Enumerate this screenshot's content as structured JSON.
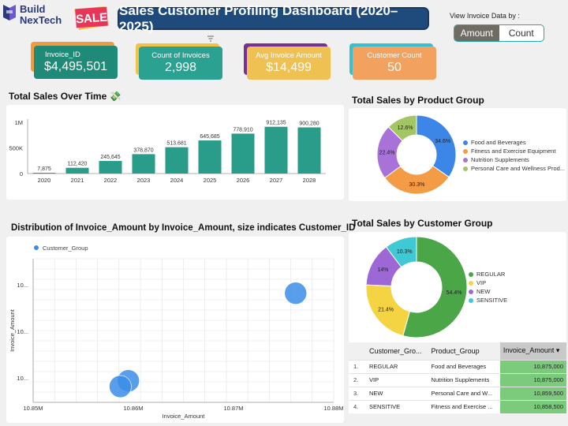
{
  "brand": {
    "line1": "Build",
    "line2": "NexTech"
  },
  "sale_badge": "SALE",
  "title": "Sales Customer Profiling Dashboard (2020–2025)",
  "view_toggle": {
    "label": "View Invoice Data by :",
    "options": [
      "Amount",
      "Count"
    ],
    "selected": "Amount"
  },
  "kpis": [
    {
      "label": "Invoice_ID",
      "value": "$4,495,501",
      "color": "#1f8a77",
      "back": "#f39a3c"
    },
    {
      "label": "Count of Invoices",
      "value": "2,998",
      "color": "#2aa191",
      "back": "#f1c244"
    },
    {
      "label": "Avg Invoice Amount",
      "value": "$14,499",
      "color": "#efc153",
      "back": "#7a2f92"
    },
    {
      "label": "Customer Count",
      "value": "50",
      "color": "#f2a25e",
      "back": "#36c0d0"
    }
  ],
  "sales_over_time": {
    "title": "Total Sales Over Time 💸",
    "chart_data": {
      "type": "bar",
      "categories": [
        "2020",
        "2021",
        "2022",
        "2023",
        "2024",
        "2025",
        "2026",
        "2027",
        "2028"
      ],
      "values": [
        7875,
        112420,
        245645,
        378870,
        513681,
        645685,
        778910,
        912135,
        900280
      ],
      "labels": [
        "7,875",
        "112,420",
        "245,645",
        "378,870",
        "513,681",
        "645,685",
        "778,910",
        "912,135",
        "900,280"
      ],
      "y_ticks": [
        "0",
        "500K",
        "1M"
      ],
      "ylim": [
        0,
        1000000
      ],
      "color": "#2a9d8a"
    }
  },
  "product_group": {
    "title": "Total Sales by Product Group",
    "chart_data": {
      "type": "pie",
      "labels": [
        "Food and Beverages",
        "Fitness and Exercise Equipment",
        "Nutrition Supplements",
        "Personal Care and Wellness Prod..."
      ],
      "values": [
        34.6,
        30.3,
        22.4,
        12.6
      ],
      "display": [
        "34.6%",
        "30.3%",
        "22.4%",
        "12.6%"
      ],
      "colors": [
        "#3c86e8",
        "#f39b45",
        "#a872d8",
        "#a4c564"
      ]
    }
  },
  "customer_group": {
    "title": "Total Sales by Customer Group",
    "chart_data": {
      "type": "pie",
      "labels": [
        "REGULAR",
        "VIP",
        "NEW",
        "SENSITIVE"
      ],
      "values": [
        54.4,
        21.4,
        14,
        10.3
      ],
      "display": [
        "54.4%",
        "21.4%",
        "14%",
        "10.3%"
      ],
      "colors": [
        "#4aa647",
        "#f5d443",
        "#9d68d6",
        "#3ec9d5"
      ]
    }
  },
  "distribution": {
    "title": "Distribution of Invoice_Amount by Invoice_Amount, size indicates Customer_ID",
    "chart_data": {
      "type": "scatter",
      "legend": "Customer_Group",
      "xlabel": "Invoice_Amount",
      "ylabel": "Invoice_Amount",
      "x_ticks": [
        "10.85M",
        "10.86M",
        "10.87M",
        "10.88M"
      ],
      "y_ticks": [
        "10...",
        "10...",
        "10..."
      ],
      "xlim": [
        10.85,
        10.88
      ],
      "ylim": [
        0,
        1
      ],
      "points": [
        {
          "x": 10.8762,
          "y": 0.76
        },
        {
          "x": 10.8595,
          "y": 0.15
        },
        {
          "x": 10.8587,
          "y": 0.11
        }
      ],
      "color": "#3b8de8"
    }
  },
  "table": {
    "headers": [
      "Customer_Gro...",
      "Product_Group",
      "Invoice_Amount ▾"
    ],
    "rows": [
      {
        "n": "1.",
        "group": "REGULAR",
        "product": "Food and Beverages",
        "amount": "10,875,000"
      },
      {
        "n": "2.",
        "group": "VIP",
        "product": "Nutrition Supplements",
        "amount": "10,875,000"
      },
      {
        "n": "3.",
        "group": "NEW",
        "product": "Personal Care and W...",
        "amount": "10,859,500"
      },
      {
        "n": "4.",
        "group": "SENSITIVE",
        "product": "Fitness and Exercise ...",
        "amount": "10,858,500"
      }
    ]
  }
}
